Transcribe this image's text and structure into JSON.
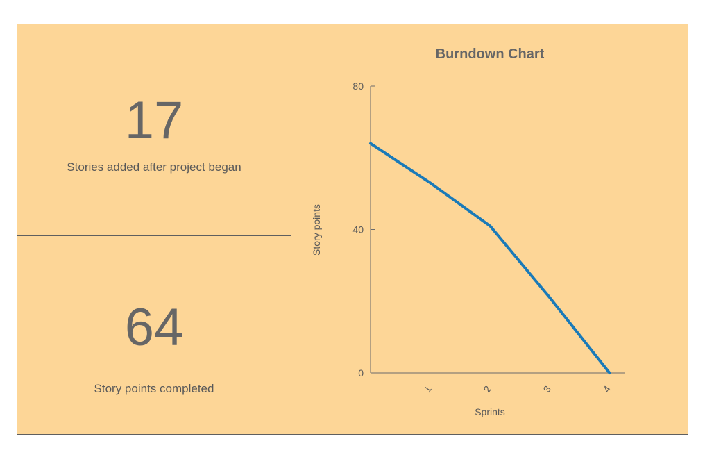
{
  "stats": [
    {
      "value": "17",
      "label": "Stories added after project began"
    },
    {
      "value": "64",
      "label": "Story points completed"
    }
  ],
  "colors": {
    "panel": "#fdd697",
    "line": "#1a7ab8",
    "text": "#666666",
    "axis": "#6b6b6b"
  },
  "chart_data": {
    "type": "line",
    "title": "Burndown Chart",
    "xlabel": "Sprints",
    "ylabel": "Story points",
    "x": [
      0,
      1,
      2,
      3,
      4
    ],
    "x_tick_labels": [
      "1",
      "2",
      "3",
      "4"
    ],
    "y_ticks": [
      0,
      40,
      80
    ],
    "ylim": [
      0,
      80
    ],
    "xlim": [
      0,
      4.25
    ],
    "series": [
      {
        "values": [
          64,
          53,
          41,
          21,
          0
        ]
      }
    ],
    "grid": false
  }
}
